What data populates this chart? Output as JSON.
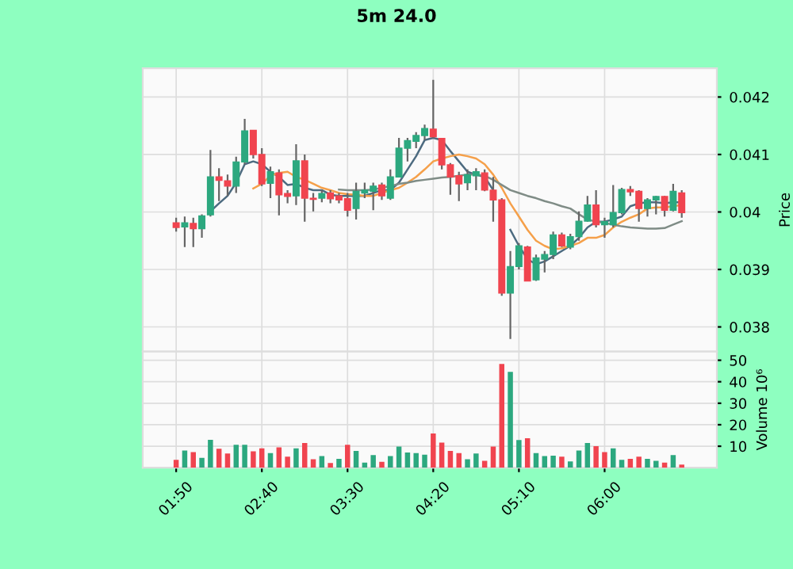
{
  "chart_data": [
    {
      "type": "candlestick",
      "title": "5m 24.0",
      "ylabel": "Price",
      "tick_labels": "y",
      "grid": true,
      "categories": [
        null,
        null,
        null,
        null,
        null,
        null,
        null,
        null,
        null,
        null,
        null,
        null,
        null,
        null,
        null,
        null,
        null,
        null,
        null,
        null,
        null,
        null,
        null,
        null,
        null,
        null,
        null,
        null,
        null,
        null,
        null,
        null,
        null,
        null,
        null,
        null,
        null,
        null,
        null,
        null,
        null,
        null,
        null,
        null,
        null,
        null,
        null,
        null,
        null,
        null,
        null,
        null,
        null,
        null,
        null,
        null,
        null,
        null,
        null,
        null
      ],
      "ylim": [
        0.03757,
        0.0425
      ],
      "yticks": [
        0.038,
        0.039,
        0.04,
        0.041,
        0.042
      ],
      "ohlc": [
        [
          0.03981,
          0.0399,
          0.03966,
          0.03973
        ],
        [
          0.03974,
          0.03992,
          0.03939,
          0.03981
        ],
        [
          0.0398,
          0.0399,
          0.03939,
          0.03971
        ],
        [
          0.03971,
          0.03996,
          0.03955,
          0.03993
        ],
        [
          0.03995,
          0.04108,
          0.03992,
          0.04061
        ],
        [
          0.04061,
          0.04076,
          0.04019,
          0.04055
        ],
        [
          0.04054,
          0.04065,
          0.04028,
          0.04045
        ],
        [
          0.04045,
          0.04096,
          0.04033,
          0.04087
        ],
        [
          0.04087,
          0.04162,
          0.04083,
          0.04141
        ],
        [
          0.04142,
          0.04142,
          0.04093,
          0.041
        ],
        [
          0.041,
          0.04111,
          0.04045,
          0.04049
        ],
        [
          0.0405,
          0.04079,
          0.04024,
          0.0407
        ],
        [
          0.04068,
          0.04074,
          0.03994,
          0.0403
        ],
        [
          0.04032,
          0.04038,
          0.04015,
          0.04027
        ],
        [
          0.04028,
          0.04118,
          0.04012,
          0.04089
        ],
        [
          0.04089,
          0.041,
          0.03983,
          0.04024
        ],
        [
          0.04024,
          0.04033,
          0.04001,
          0.04022
        ],
        [
          0.04024,
          0.04038,
          0.04017,
          0.04032
        ],
        [
          0.04033,
          0.04038,
          0.04015,
          0.04023
        ],
        [
          0.04028,
          0.04033,
          0.04015,
          0.04021
        ],
        [
          0.04023,
          0.04033,
          0.03992,
          0.04003
        ],
        [
          0.04006,
          0.04051,
          0.03987,
          0.04036
        ],
        [
          0.04033,
          0.04051,
          0.04024,
          0.04038
        ],
        [
          0.04036,
          0.04051,
          0.04003,
          0.04045
        ],
        [
          0.04047,
          0.04051,
          0.04021,
          0.04028
        ],
        [
          0.04024,
          0.04074,
          0.04021,
          0.04061
        ],
        [
          0.04061,
          0.04129,
          0.04061,
          0.04111
        ],
        [
          0.04111,
          0.04129,
          0.04088,
          0.04124
        ],
        [
          0.04123,
          0.04139,
          0.04111,
          0.04133
        ],
        [
          0.04133,
          0.04152,
          0.04125,
          0.04145
        ],
        [
          0.04144,
          0.0423,
          0.04129,
          0.04131
        ],
        [
          0.04128,
          0.04129,
          0.04074,
          0.04082
        ],
        [
          0.04082,
          0.04085,
          0.0403,
          0.04061
        ],
        [
          0.04063,
          0.0407,
          0.04019,
          0.04049
        ],
        [
          0.04051,
          0.04074,
          0.04038,
          0.04065
        ],
        [
          0.04063,
          0.04076,
          0.04038,
          0.0407
        ],
        [
          0.04068,
          0.04074,
          0.04036,
          0.04038
        ],
        [
          0.04038,
          0.04061,
          0.03983,
          0.04021
        ],
        [
          0.04021,
          0.04024,
          0.03854,
          0.03859
        ],
        [
          0.03859,
          0.03932,
          0.03779,
          0.03905
        ],
        [
          0.03905,
          0.03946,
          0.039,
          0.03941
        ],
        [
          0.03939,
          0.03941,
          0.0388,
          0.0388
        ],
        [
          0.03882,
          0.03926,
          0.0388,
          0.0392
        ],
        [
          0.03918,
          0.03932,
          0.03895,
          0.03926
        ],
        [
          0.03926,
          0.03966,
          0.03918,
          0.0396
        ],
        [
          0.0396,
          0.03964,
          0.03939,
          0.03941
        ],
        [
          0.03939,
          0.03962,
          0.03935,
          0.03957
        ],
        [
          0.03957,
          0.04001,
          0.0395,
          0.03984
        ],
        [
          0.03984,
          0.04028,
          0.03983,
          0.04012
        ],
        [
          0.04012,
          0.04038,
          0.03973,
          0.03978
        ],
        [
          0.03978,
          0.0399,
          0.03955,
          0.03983
        ],
        [
          0.03978,
          0.04047,
          0.03973,
          0.03999
        ],
        [
          0.03999,
          0.04042,
          0.03996,
          0.04039
        ],
        [
          0.04039,
          0.04045,
          0.04028,
          0.04035
        ],
        [
          0.04036,
          0.04038,
          0.03983,
          0.04006
        ],
        [
          0.04006,
          0.04024,
          0.03992,
          0.04021
        ],
        [
          0.04021,
          0.04028,
          0.03996,
          0.04027
        ],
        [
          0.04027,
          0.04028,
          0.03992,
          0.04003
        ],
        [
          0.04003,
          0.04049,
          0.04001,
          0.04036
        ],
        [
          0.04033,
          0.04038,
          0.0399,
          0.03999
        ]
      ],
      "colors": [
        "#f0444f",
        "#2ca87f",
        "#f0444f",
        "#2ca87f",
        "#2ca87f",
        "#f0444f",
        "#f0444f",
        "#2ca87f",
        "#2ca87f",
        "#f0444f",
        "#f0444f",
        "#2ca87f",
        "#f0444f",
        "#f0444f",
        "#2ca87f",
        "#f0444f",
        "#f0444f",
        "#2ca87f",
        "#f0444f",
        "#f0444f",
        "#f0444f",
        "#2ca87f",
        "#2ca87f",
        "#2ca87f",
        "#f0444f",
        "#2ca87f",
        "#2ca87f",
        "#2ca87f",
        "#2ca87f",
        "#2ca87f",
        "#f0444f",
        "#f0444f",
        "#f0444f",
        "#f0444f",
        "#2ca87f",
        "#2ca87f",
        "#f0444f",
        "#f0444f",
        "#f0444f",
        "#2ca87f",
        "#2ca87f",
        "#f0444f",
        "#2ca87f",
        "#2ca87f",
        "#2ca87f",
        "#f0444f",
        "#2ca87f",
        "#2ca87f",
        "#2ca87f",
        "#f0444f",
        "#2ca87f",
        "#2ca87f",
        "#2ca87f",
        "#f0444f",
        "#f0444f",
        "#2ca87f",
        "#2ca87f",
        "#f0444f",
        "#2ca87f",
        "#f0444f"
      ],
      "series": [
        {
          "type": "line",
          "color": "#4d6b80",
          "values": [
            null,
            null,
            null,
            null,
            0.04001,
            0.04015,
            0.04028,
            0.04051,
            0.04083,
            0.04088,
            0.04083,
            0.0407,
            0.04061,
            0.04047,
            0.04049,
            0.04042,
            0.04038,
            0.04038,
            0.0403,
            0.04028,
            0.04028,
            0.04028,
            0.04028,
            0.04033,
            0.04038,
            0.04038,
            0.04051,
            0.04074,
            0.04097,
            0.04125,
            0.04129,
            0.04125,
            0.04106,
            0.04088,
            0.0407,
            0.04065,
            0.04061,
            0.04038,
            null,
            0.03969,
            0.03941,
            0.03918,
            0.03909,
            0.03914,
            0.03923,
            0.03932,
            0.03941,
            0.03955,
            0.03973,
            0.03983,
            0.03983,
            0.03987,
            0.03992,
            0.0401,
            0.04015,
            0.04017,
            0.04017,
            0.04015,
            0.04017,
            0.04017
          ]
        },
        {
          "type": "line",
          "color": "#f5a04a",
          "values": [
            null,
            null,
            null,
            null,
            null,
            null,
            null,
            null,
            null,
            0.04041,
            0.04049,
            0.04063,
            0.04068,
            0.0407,
            0.04061,
            0.04056,
            0.04049,
            0.04042,
            0.04038,
            0.04033,
            0.04031,
            0.0403,
            0.04028,
            0.04028,
            0.04033,
            0.04038,
            0.04042,
            0.04051,
            0.04061,
            0.04074,
            0.04088,
            0.04093,
            0.04097,
            0.041,
            0.04097,
            0.04093,
            0.04083,
            0.04065,
            0.04042,
            0.04015,
            0.03992,
            0.03969,
            0.0395,
            0.03941,
            0.03935,
            0.03937,
            0.03941,
            0.03946,
            0.03955,
            0.03955,
            0.0396,
            0.03973,
            0.03983,
            0.0399,
            0.03996,
            0.04006,
            0.04008,
            0.04008,
            0.0401,
            0.04012
          ]
        },
        {
          "type": "line",
          "color": "#7f8c86",
          "values": [
            null,
            null,
            null,
            null,
            null,
            null,
            null,
            null,
            null,
            null,
            null,
            null,
            null,
            null,
            null,
            null,
            null,
            null,
            null,
            0.04039,
            0.04038,
            0.04038,
            0.04038,
            0.04039,
            0.04042,
            0.04045,
            0.04049,
            0.04051,
            0.04054,
            0.04056,
            0.04058,
            0.0406,
            0.04061,
            0.04063,
            0.04065,
            0.04065,
            0.04063,
            0.04056,
            0.04047,
            0.04038,
            0.04033,
            0.04028,
            0.04024,
            0.04019,
            0.04015,
            0.0401,
            0.04006,
            0.03996,
            0.03987,
            0.03983,
            0.03981,
            0.03978,
            0.03975,
            0.03973,
            0.03972,
            0.03971,
            0.03971,
            0.03972,
            0.03978,
            0.03984
          ]
        }
      ]
    },
    {
      "type": "bar",
      "ylabel": "Volume 10⁶",
      "grid": true,
      "categories": [
        "01:50",
        null,
        null,
        null,
        null,
        null,
        null,
        null,
        null,
        null,
        "02:40",
        null,
        null,
        null,
        null,
        null,
        null,
        null,
        null,
        null,
        "03:30",
        null,
        null,
        null,
        null,
        null,
        null,
        null,
        null,
        null,
        "04:20",
        null,
        null,
        null,
        null,
        null,
        null,
        null,
        null,
        null,
        "05:10",
        null,
        null,
        null,
        null,
        null,
        null,
        null,
        null,
        null,
        "06:00",
        null,
        null,
        null,
        null,
        null,
        null,
        null,
        null,
        null
      ],
      "ylim": [
        0,
        54
      ],
      "yticks": [
        10,
        20,
        30,
        40,
        50
      ],
      "values": [
        3.7,
        8,
        7.3,
        4.6,
        13,
        8.8,
        6.6,
        10.7,
        10.7,
        7.6,
        9,
        6.8,
        9.5,
        5.1,
        9,
        11.5,
        3.9,
        5.4,
        2.2,
        4.1,
        10.7,
        7.8,
        2.4,
        5.9,
        2.7,
        5.4,
        9.8,
        7.1,
        6.8,
        6.1,
        15.9,
        11.7,
        7.8,
        6.8,
        3.9,
        6.6,
        3.2,
        9.8,
        48.3,
        44.6,
        12.9,
        13.7,
        6.8,
        5.4,
        5.6,
        5.1,
        2.9,
        8,
        11.5,
        10,
        7.3,
        9,
        3.7,
        4.1,
        5.1,
        4.1,
        3.2,
        2.4,
        5.9,
        1.5
      ],
      "colors": [
        "#f0444f",
        "#2ca87f",
        "#f0444f",
        "#2ca87f",
        "#2ca87f",
        "#f0444f",
        "#f0444f",
        "#2ca87f",
        "#2ca87f",
        "#f0444f",
        "#f0444f",
        "#2ca87f",
        "#f0444f",
        "#f0444f",
        "#2ca87f",
        "#f0444f",
        "#f0444f",
        "#2ca87f",
        "#f0444f",
        "#2ca87f",
        "#f0444f",
        "#2ca87f",
        "#2ca87f",
        "#2ca87f",
        "#f0444f",
        "#2ca87f",
        "#2ca87f",
        "#2ca87f",
        "#2ca87f",
        "#2ca87f",
        "#f0444f",
        "#f0444f",
        "#f0444f",
        "#f0444f",
        "#2ca87f",
        "#2ca87f",
        "#f0444f",
        "#f0444f",
        "#f0444f",
        "#2ca87f",
        "#2ca87f",
        "#f0444f",
        "#2ca87f",
        "#2ca87f",
        "#2ca87f",
        "#f0444f",
        "#2ca87f",
        "#2ca87f",
        "#2ca87f",
        "#f0444f",
        "#f0444f",
        "#2ca87f",
        "#2ca87f",
        "#f0444f",
        "#f0444f",
        "#2ca87f",
        "#2ca87f",
        "#f0444f",
        "#2ca87f",
        "#f0444f"
      ]
    }
  ]
}
